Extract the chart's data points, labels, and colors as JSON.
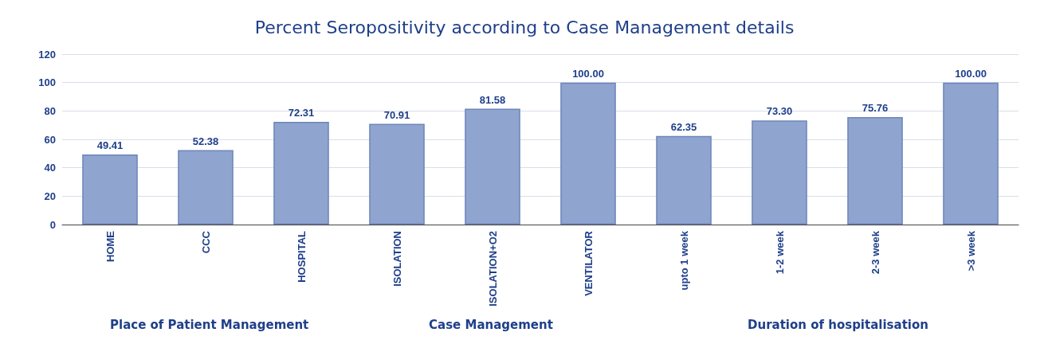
{
  "chart_data": {
    "type": "bar",
    "title": "Percent Seropositivity according to Case Management details",
    "categories": [
      "HOME",
      "CCC",
      "HOSPITAL",
      "ISOLATION",
      "ISOLATION+O2",
      "VENTILATOR",
      "upto 1 week",
      "1-2 week",
      "2-3 week",
      ">3 week"
    ],
    "values": [
      49.41,
      52.38,
      72.31,
      70.91,
      81.58,
      100,
      62.35,
      73.3,
      75.76,
      100
    ],
    "value_labels": [
      "49.41",
      "52.38",
      "72.31",
      "70.91",
      "81.58",
      "100.00",
      "62.35",
      "73.30",
      "75.76",
      "100.00"
    ],
    "color": "#8fa5cf",
    "ylim": [
      0,
      120
    ],
    "yticks": [
      0,
      20,
      40,
      60,
      80,
      100,
      120
    ],
    "grid": "y",
    "annotations": [
      "Place of Patient Management",
      "Case Management",
      "Duration of hospitalisation"
    ]
  }
}
